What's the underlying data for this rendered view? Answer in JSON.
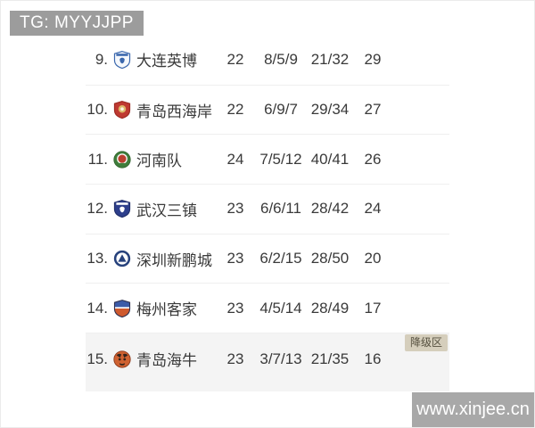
{
  "header": {
    "tg_badge": "TG: MYYJJPP",
    "tg_badge_bg": "#9c9c9c",
    "tg_badge_color": "#ffffff"
  },
  "table": {
    "relegation_label": "降级区",
    "relegation_badge": {
      "bg": "#d5cebc",
      "color": "#55503f"
    },
    "highlight_bg": "#f4f4f4",
    "rows": [
      {
        "rank": "9.",
        "team": "大连英博",
        "played": "22",
        "wdl": "8/5/9",
        "goals": "21/32",
        "points": "29",
        "crest": {
          "name": "dalian-yingbo-crest",
          "type": "shield-lines",
          "bg": "#f5f8fc",
          "border": "#3a67ad",
          "accent": "#3a67ad"
        }
      },
      {
        "rank": "10.",
        "team": "青岛西海岸",
        "played": "22",
        "wdl": "6/9/7",
        "goals": "29/34",
        "points": "27",
        "crest": {
          "name": "qingdao-west-coast-crest",
          "type": "shield",
          "bg": "#bf3a31",
          "border": "#9e2b23",
          "accent": "#ddb96a"
        }
      },
      {
        "rank": "11.",
        "team": "河南队",
        "played": "24",
        "wdl": "7/5/12",
        "goals": "40/41",
        "points": "26",
        "crest": {
          "name": "henan-crest",
          "type": "circle-badge",
          "bg": "#3f7d3b",
          "border": "#33672f",
          "accent": "#bb3f2e"
        }
      },
      {
        "rank": "12.",
        "team": "武汉三镇",
        "played": "23",
        "wdl": "6/6/11",
        "goals": "28/42",
        "points": "24",
        "crest": {
          "name": "wuhan-three-towns-crest",
          "type": "shield-lines",
          "bg": "#2d3f8c",
          "border": "#22306b",
          "accent": "#ffffff"
        }
      },
      {
        "rank": "13.",
        "team": "深圳新鹏城",
        "played": "23",
        "wdl": "6/2/15",
        "goals": "28/50",
        "points": "20",
        "crest": {
          "name": "shenzhen-peng-city-crest",
          "type": "ring-triangle",
          "bg": "#27427c",
          "border": "#1d3260",
          "accent": "#ffffff"
        }
      },
      {
        "rank": "14.",
        "team": "梅州客家",
        "played": "23",
        "wdl": "4/5/14",
        "goals": "28/49",
        "points": "17",
        "crest": {
          "name": "meizhou-hakka-crest",
          "type": "shield-split",
          "bg": "#3c5ba8",
          "border": "#2e3050",
          "accent": "#cf5a2e"
        }
      },
      {
        "rank": "15.",
        "team": "青岛海牛",
        "played": "23",
        "wdl": "3/7/13",
        "goals": "21/35",
        "points": "16",
        "highlighted": true,
        "badge": "降级区",
        "crest": {
          "name": "qingdao-hainiu-crest",
          "type": "circle-face",
          "bg": "#cf6231",
          "border": "#8c3a1c",
          "accent": "#33241d"
        }
      }
    ]
  },
  "footer": {
    "watermark": "www.xinjee.cn",
    "watermark_bg": "#a8a8a8",
    "watermark_color": "#ffffff"
  }
}
